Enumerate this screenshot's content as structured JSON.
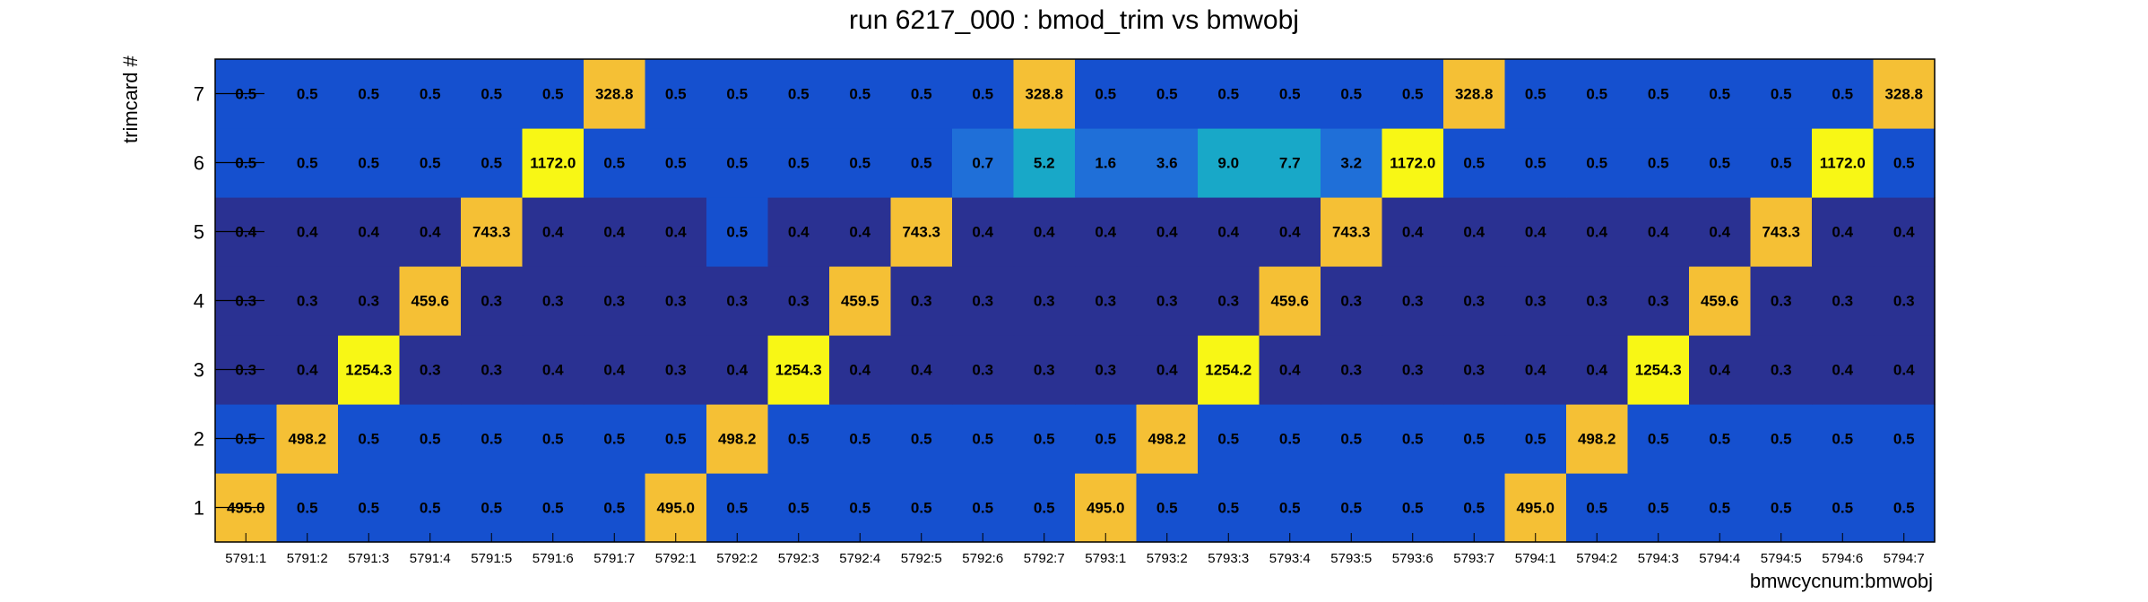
{
  "chart_data": {
    "type": "heatmap",
    "title": "run 6217_000 : bmod_trim vs bmwobj",
    "xlabel": "bmwcycnum:bmwobj",
    "ylabel": "trimcard #",
    "x_categories": [
      "5791:1",
      "5791:2",
      "5791:3",
      "5791:4",
      "5791:5",
      "5791:6",
      "5791:7",
      "5792:1",
      "5792:2",
      "5792:3",
      "5792:4",
      "5792:5",
      "5792:6",
      "5792:7",
      "5793:1",
      "5793:2",
      "5793:3",
      "5793:4",
      "5793:5",
      "5793:6",
      "5793:7",
      "5794:1",
      "5794:2",
      "5794:3",
      "5794:4",
      "5794:5",
      "5794:6",
      "5794:7"
    ],
    "y_categories": [
      "1",
      "2",
      "3",
      "4",
      "5",
      "6",
      "7"
    ],
    "values": [
      [
        "495.0",
        "0.5",
        "0.5",
        "0.5",
        "0.5",
        "0.5",
        "0.5",
        "495.0",
        "0.5",
        "0.5",
        "0.5",
        "0.5",
        "0.5",
        "0.5",
        "495.0",
        "0.5",
        "0.5",
        "0.5",
        "0.5",
        "0.5",
        "0.5",
        "495.0",
        "0.5",
        "0.5",
        "0.5",
        "0.5",
        "0.5",
        "0.5"
      ],
      [
        "0.5",
        "498.2",
        "0.5",
        "0.5",
        "0.5",
        "0.5",
        "0.5",
        "0.5",
        "498.2",
        "0.5",
        "0.5",
        "0.5",
        "0.5",
        "0.5",
        "0.5",
        "498.2",
        "0.5",
        "0.5",
        "0.5",
        "0.5",
        "0.5",
        "0.5",
        "498.2",
        "0.5",
        "0.5",
        "0.5",
        "0.5",
        "0.5"
      ],
      [
        "0.3",
        "0.4",
        "1254.3",
        "0.3",
        "0.3",
        "0.4",
        "0.4",
        "0.3",
        "0.4",
        "1254.3",
        "0.4",
        "0.4",
        "0.3",
        "0.3",
        "0.3",
        "0.4",
        "1254.2",
        "0.4",
        "0.3",
        "0.3",
        "0.3",
        "0.4",
        "0.4",
        "1254.3",
        "0.4",
        "0.3",
        "0.4",
        "0.4"
      ],
      [
        "0.3",
        "0.3",
        "0.3",
        "459.6",
        "0.3",
        "0.3",
        "0.3",
        "0.3",
        "0.3",
        "0.3",
        "459.5",
        "0.3",
        "0.3",
        "0.3",
        "0.3",
        "0.3",
        "0.3",
        "459.6",
        "0.3",
        "0.3",
        "0.3",
        "0.3",
        "0.3",
        "0.3",
        "459.6",
        "0.3",
        "0.3",
        "0.3"
      ],
      [
        "0.4",
        "0.4",
        "0.4",
        "0.4",
        "743.3",
        "0.4",
        "0.4",
        "0.4",
        "0.5",
        "0.4",
        "0.4",
        "743.3",
        "0.4",
        "0.4",
        "0.4",
        "0.4",
        "0.4",
        "0.4",
        "743.3",
        "0.4",
        "0.4",
        "0.4",
        "0.4",
        "0.4",
        "0.4",
        "743.3",
        "0.4",
        "0.4"
      ],
      [
        "0.5",
        "0.5",
        "0.5",
        "0.5",
        "0.5",
        "1172.0",
        "0.5",
        "0.5",
        "0.5",
        "0.5",
        "0.5",
        "0.5",
        "0.7",
        "5.2",
        "1.6",
        "3.6",
        "9.0",
        "7.7",
        "3.2",
        "1172.0",
        "0.5",
        "0.5",
        "0.5",
        "0.5",
        "0.5",
        "0.5",
        "1172.0",
        "0.5"
      ],
      [
        "0.5",
        "0.5",
        "0.5",
        "0.5",
        "0.5",
        "0.5",
        "328.8",
        "0.5",
        "0.5",
        "0.5",
        "0.5",
        "0.5",
        "0.5",
        "328.8",
        "0.5",
        "0.5",
        "0.5",
        "0.5",
        "0.5",
        "0.5",
        "328.8",
        "0.5",
        "0.5",
        "0.5",
        "0.5",
        "0.5",
        "0.5",
        "328.8"
      ]
    ],
    "color_scale": {
      "low": "#2a3192",
      "mid_low": "#1550cf",
      "mid": "#1f6fd8",
      "teal": "#18a8c8",
      "high": "#f5c035",
      "max": "#f8f715"
    },
    "grid": false,
    "legend": "none"
  }
}
